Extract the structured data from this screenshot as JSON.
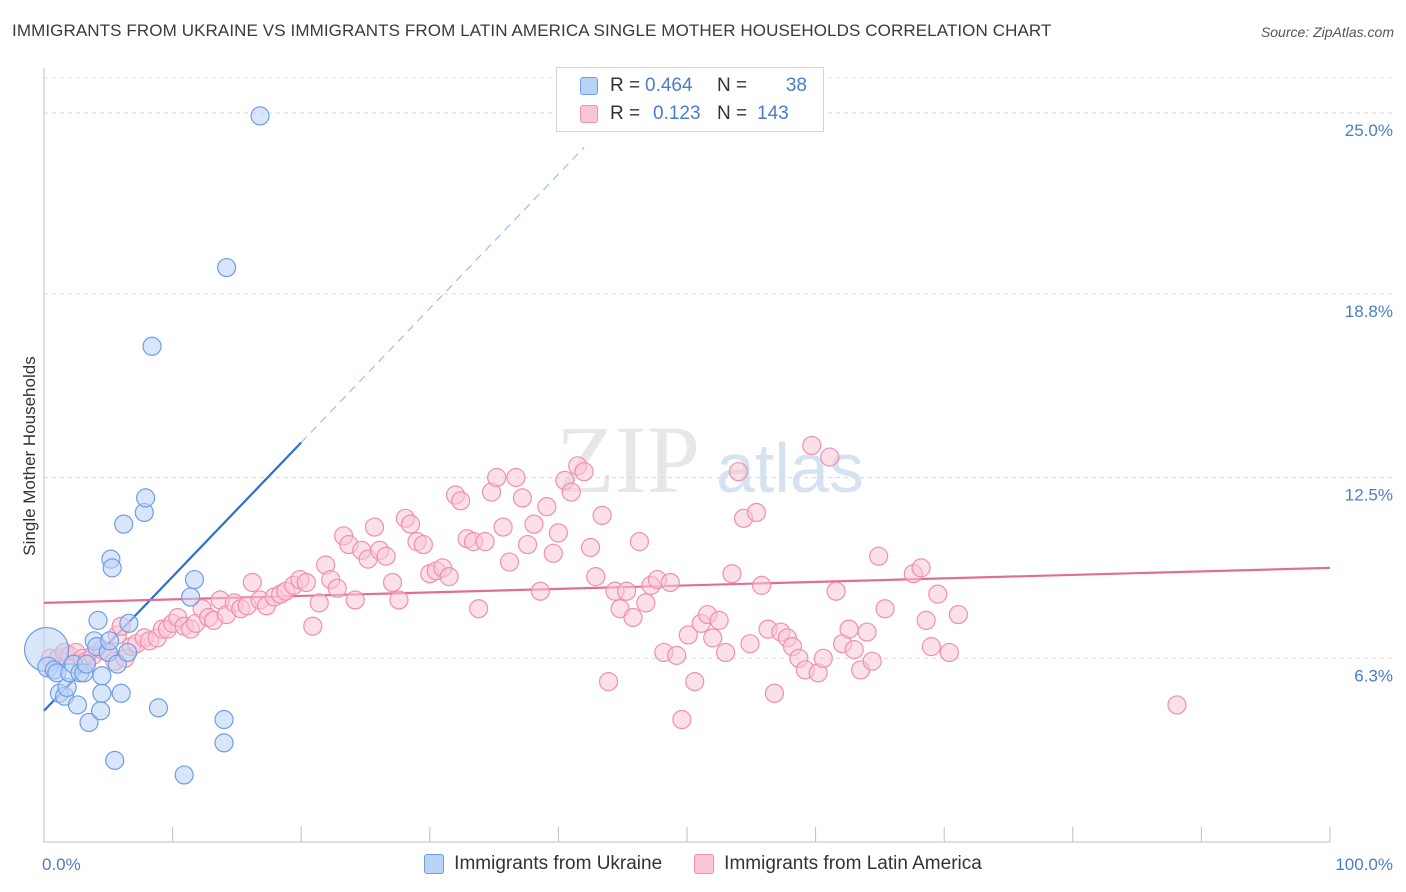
{
  "title": "IMMIGRANTS FROM UKRAINE VS IMMIGRANTS FROM LATIN AMERICA SINGLE MOTHER HOUSEHOLDS CORRELATION CHART",
  "source": "Source: ZipAtlas.com",
  "watermark": {
    "zip": "ZIP",
    "atlas": "atlas"
  },
  "stats": [
    {
      "r_label": "R =",
      "r_value": "0.464",
      "n_label": "N =",
      "n_value": "38",
      "color": "#6f9ee6",
      "fill": "#b9d2f5"
    },
    {
      "r_label": "R =",
      "r_value": "0.123",
      "n_label": "N =",
      "n_value": "143",
      "color": "#f08fb0",
      "fill": "#f9c6d6"
    }
  ],
  "legend": [
    {
      "label": "Immigrants from Ukraine"
    },
    {
      "label": "Immigrants from Latin America"
    }
  ],
  "chart_data": {
    "type": "scatter",
    "xlabel": "",
    "ylabel": "Single Mother Households",
    "xlim": [
      0,
      100
    ],
    "ylim": [
      0,
      26.2
    ],
    "x_tick_labels": [
      "0.0%",
      "100.0%"
    ],
    "y_ticks": [
      6.3,
      12.5,
      18.8,
      25.0
    ],
    "y_tick_labels": [
      "6.3%",
      "12.5%",
      "18.8%",
      "25.0%"
    ],
    "grid": true,
    "legend_position": "bottom",
    "series": [
      {
        "name": "Immigrants from Ukraine",
        "color": "#6f9ee6",
        "fill": "#b9d2f5",
        "trend": {
          "x0": 0,
          "y0": 4.5,
          "x1": 20,
          "y1": 13.7,
          "dash_to_x": 42,
          "color": "#2a70d0"
        },
        "points": [
          [
            0.2,
            6.6,
            22
          ],
          [
            0.3,
            6.0,
            10
          ],
          [
            0.8,
            5.9,
            9
          ],
          [
            1.0,
            5.8,
            9
          ],
          [
            1.2,
            5.1,
            9
          ],
          [
            1.6,
            5.0,
            9
          ],
          [
            1.8,
            5.3,
            9
          ],
          [
            2.0,
            5.8,
            9
          ],
          [
            2.3,
            6.1,
            9
          ],
          [
            2.6,
            4.7,
            9
          ],
          [
            2.8,
            5.8,
            9
          ],
          [
            3.1,
            5.8,
            9
          ],
          [
            3.3,
            6.1,
            9
          ],
          [
            3.5,
            4.1,
            9
          ],
          [
            3.9,
            6.9,
            9
          ],
          [
            4.1,
            6.7,
            9
          ],
          [
            4.2,
            7.6,
            9
          ],
          [
            4.4,
            4.5,
            9
          ],
          [
            4.5,
            5.1,
            9
          ],
          [
            4.5,
            5.7,
            9
          ],
          [
            5.0,
            6.5,
            9
          ],
          [
            5.1,
            6.9,
            9
          ],
          [
            5.2,
            9.7,
            9
          ],
          [
            5.3,
            9.4,
            9
          ],
          [
            5.5,
            2.8,
            9
          ],
          [
            5.7,
            6.1,
            9
          ],
          [
            6.0,
            5.1,
            9
          ],
          [
            6.2,
            10.9,
            9
          ],
          [
            6.5,
            6.5,
            9
          ],
          [
            6.6,
            7.5,
            9
          ],
          [
            7.8,
            11.3,
            9
          ],
          [
            7.9,
            11.8,
            9
          ],
          [
            8.4,
            17.0,
            9
          ],
          [
            8.9,
            4.6,
            9
          ],
          [
            10.9,
            2.3,
            9
          ],
          [
            11.4,
            8.4,
            9
          ],
          [
            11.7,
            9.0,
            9
          ],
          [
            14.0,
            4.2,
            9
          ],
          [
            14.0,
            3.4,
            9
          ],
          [
            14.2,
            19.7,
            9
          ],
          [
            16.8,
            24.9,
            9
          ]
        ]
      },
      {
        "name": "Immigrants from Latin America",
        "color": "#f08fb0",
        "fill": "#f9c6d6",
        "trend": {
          "x0": 0,
          "y0": 8.2,
          "x1": 100,
          "y1": 9.4,
          "color": "#e06f98"
        },
        "points": [
          [
            0.5,
            6.3,
            9
          ],
          [
            1.1,
            6.3,
            9
          ],
          [
            1.6,
            6.5,
            9
          ],
          [
            2.0,
            6.4,
            9
          ],
          [
            2.5,
            6.5,
            9
          ],
          [
            3.0,
            6.3,
            9
          ],
          [
            3.3,
            6.2,
            9
          ],
          [
            3.8,
            6.4,
            9
          ],
          [
            4.5,
            6.6,
            9
          ],
          [
            5.0,
            6.5,
            9
          ],
          [
            5.5,
            6.2,
            9
          ],
          [
            5.7,
            7.1,
            9
          ],
          [
            6.0,
            7.4,
            9
          ],
          [
            6.3,
            6.3,
            9
          ],
          [
            6.8,
            6.7,
            9
          ],
          [
            7.2,
            6.8,
            9
          ],
          [
            7.8,
            7.0,
            9
          ],
          [
            8.2,
            6.9,
            9
          ],
          [
            8.8,
            7.0,
            9
          ],
          [
            9.2,
            7.3,
            9
          ],
          [
            9.6,
            7.3,
            9
          ],
          [
            10.0,
            7.5,
            9
          ],
          [
            10.4,
            7.7,
            9
          ],
          [
            10.9,
            7.4,
            9
          ],
          [
            11.4,
            7.3,
            9
          ],
          [
            11.8,
            7.5,
            9
          ],
          [
            12.3,
            8.0,
            9
          ],
          [
            12.8,
            7.7,
            9
          ],
          [
            13.2,
            7.6,
            9
          ],
          [
            13.7,
            8.3,
            9
          ],
          [
            14.2,
            7.8,
            9
          ],
          [
            14.8,
            8.2,
            9
          ],
          [
            15.3,
            8.0,
            9
          ],
          [
            15.8,
            8.1,
            9
          ],
          [
            16.2,
            8.9,
            9
          ],
          [
            16.8,
            8.3,
            9
          ],
          [
            17.3,
            8.1,
            9
          ],
          [
            17.9,
            8.4,
            9
          ],
          [
            18.4,
            8.5,
            9
          ],
          [
            18.8,
            8.6,
            9
          ],
          [
            19.4,
            8.8,
            9
          ],
          [
            19.9,
            9.0,
            9
          ],
          [
            20.4,
            8.9,
            9
          ],
          [
            20.9,
            7.4,
            9
          ],
          [
            21.4,
            8.2,
            9
          ],
          [
            21.9,
            9.5,
            9
          ],
          [
            22.3,
            9.0,
            9
          ],
          [
            22.8,
            8.7,
            9
          ],
          [
            23.3,
            10.5,
            9
          ],
          [
            23.7,
            10.2,
            9
          ],
          [
            24.2,
            8.3,
            9
          ],
          [
            24.7,
            10.0,
            9
          ],
          [
            25.2,
            9.7,
            9
          ],
          [
            25.7,
            10.8,
            9
          ],
          [
            26.1,
            10.0,
            9
          ],
          [
            26.6,
            9.8,
            9
          ],
          [
            27.1,
            8.9,
            9
          ],
          [
            27.6,
            8.3,
            9
          ],
          [
            28.1,
            11.1,
            9
          ],
          [
            28.5,
            10.9,
            9
          ],
          [
            29.0,
            10.3,
            9
          ],
          [
            29.5,
            10.2,
            9
          ],
          [
            30.0,
            9.2,
            9
          ],
          [
            30.5,
            9.3,
            9
          ],
          [
            31.0,
            9.4,
            9
          ],
          [
            31.5,
            9.1,
            9
          ],
          [
            32.0,
            11.9,
            9
          ],
          [
            32.4,
            11.7,
            9
          ],
          [
            32.9,
            10.4,
            9
          ],
          [
            33.4,
            10.3,
            9
          ],
          [
            33.8,
            8.0,
            9
          ],
          [
            34.3,
            10.3,
            9
          ],
          [
            34.8,
            12.0,
            9
          ],
          [
            35.2,
            12.5,
            9
          ],
          [
            35.7,
            10.8,
            9
          ],
          [
            36.2,
            9.6,
            9
          ],
          [
            36.7,
            12.5,
            9
          ],
          [
            37.2,
            11.8,
            9
          ],
          [
            37.6,
            10.2,
            9
          ],
          [
            38.1,
            10.9,
            9
          ],
          [
            38.6,
            8.6,
            9
          ],
          [
            39.1,
            11.5,
            9
          ],
          [
            39.6,
            9.9,
            9
          ],
          [
            40.0,
            10.6,
            9
          ],
          [
            40.5,
            12.4,
            9
          ],
          [
            41.0,
            12.0,
            9
          ],
          [
            41.5,
            12.9,
            9
          ],
          [
            42.0,
            12.7,
            9
          ],
          [
            42.5,
            10.1,
            9
          ],
          [
            42.9,
            9.1,
            9
          ],
          [
            43.4,
            11.2,
            9
          ],
          [
            43.9,
            5.5,
            9
          ],
          [
            44.4,
            8.6,
            9
          ],
          [
            44.8,
            8.0,
            9
          ],
          [
            45.3,
            8.6,
            9
          ],
          [
            45.8,
            7.7,
            9
          ],
          [
            46.3,
            10.3,
            9
          ],
          [
            46.8,
            8.2,
            9
          ],
          [
            47.2,
            8.8,
            9
          ],
          [
            47.7,
            9.0,
            9
          ],
          [
            48.2,
            6.5,
            9
          ],
          [
            48.7,
            8.9,
            9
          ],
          [
            49.2,
            6.4,
            9
          ],
          [
            49.6,
            4.2,
            9
          ],
          [
            50.1,
            7.1,
            9
          ],
          [
            50.6,
            5.5,
            9
          ],
          [
            51.1,
            7.5,
            9
          ],
          [
            51.6,
            7.8,
            9
          ],
          [
            52.0,
            7.0,
            9
          ],
          [
            52.5,
            7.6,
            9
          ],
          [
            53.0,
            6.5,
            9
          ],
          [
            53.5,
            9.2,
            9
          ],
          [
            54.0,
            12.7,
            9
          ],
          [
            54.4,
            11.1,
            9
          ],
          [
            54.9,
            6.8,
            9
          ],
          [
            55.4,
            11.3,
            9
          ],
          [
            55.8,
            8.8,
            9
          ],
          [
            56.3,
            7.3,
            9
          ],
          [
            56.8,
            5.1,
            9
          ],
          [
            57.3,
            7.2,
            9
          ],
          [
            57.8,
            7.0,
            9
          ],
          [
            58.2,
            6.7,
            9
          ],
          [
            58.7,
            6.3,
            9
          ],
          [
            59.2,
            5.9,
            9
          ],
          [
            59.7,
            13.6,
            9
          ],
          [
            60.2,
            5.8,
            9
          ],
          [
            60.6,
            6.3,
            9
          ],
          [
            61.1,
            13.2,
            9
          ],
          [
            61.6,
            8.6,
            9
          ],
          [
            62.1,
            6.8,
            9
          ],
          [
            62.6,
            7.3,
            9
          ],
          [
            63.0,
            6.6,
            9
          ],
          [
            63.5,
            5.9,
            9
          ],
          [
            64.0,
            7.2,
            9
          ],
          [
            64.4,
            6.2,
            9
          ],
          [
            64.9,
            9.8,
            9
          ],
          [
            65.4,
            8.0,
            9
          ],
          [
            67.6,
            9.2,
            9
          ],
          [
            68.2,
            9.4,
            9
          ],
          [
            68.6,
            7.6,
            9
          ],
          [
            69.0,
            6.7,
            9
          ],
          [
            69.5,
            8.5,
            9
          ],
          [
            70.4,
            6.5,
            9
          ],
          [
            71.1,
            7.8,
            9
          ],
          [
            88.1,
            4.7,
            9
          ]
        ]
      }
    ]
  }
}
